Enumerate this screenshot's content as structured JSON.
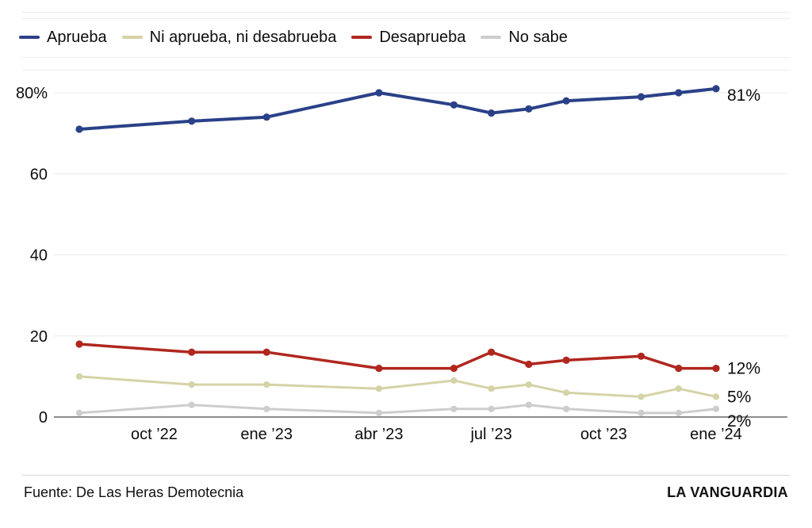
{
  "legend": {
    "items": [
      {
        "label": "Aprueba",
        "color": "#2a4188"
      },
      {
        "label": "Ni aprueba, ni desabrueba",
        "color": "#d5d3a7"
      },
      {
        "label": "Desaprueba",
        "color": "#b0271f"
      },
      {
        "label": "No sabe",
        "color": "#cdcdcd"
      }
    ]
  },
  "chart_data": {
    "type": "line",
    "x_tick_labels": [
      {
        "label": "oct ’22",
        "month_offset": 2
      },
      {
        "label": "ene ’23",
        "month_offset": 5
      },
      {
        "label": "abr ’23",
        "month_offset": 8
      },
      {
        "label": "jul ’23",
        "month_offset": 11
      },
      {
        "label": "oct ’23",
        "month_offset": 14
      },
      {
        "label": "ene ’24",
        "month_offset": 17
      }
    ],
    "point_month_offsets": [
      0,
      3,
      5,
      8,
      10,
      11,
      12,
      13,
      15,
      16,
      17
    ],
    "series": [
      {
        "name": "Aprueba",
        "color": "#2a4188",
        "values": [
          71,
          73,
          74,
          80,
          77,
          75,
          76,
          78,
          79,
          80,
          81
        ],
        "end_label": "81%"
      },
      {
        "name": "Ni aprueba, ni desabrueba",
        "color": "#d5d3a7",
        "values": [
          10,
          8,
          8,
          7,
          9,
          7,
          8,
          6,
          5,
          7,
          5
        ],
        "end_label": "5%"
      },
      {
        "name": "Desaprueba",
        "color": "#b0271f",
        "values": [
          18,
          16,
          16,
          12,
          12,
          16,
          13,
          14,
          15,
          12,
          12
        ],
        "end_label": "12%"
      },
      {
        "name": "No sabe",
        "color": "#cdcdcd",
        "values": [
          1,
          3,
          2,
          1,
          2,
          2,
          3,
          2,
          1,
          1,
          2
        ],
        "end_label": "2%"
      }
    ],
    "y_ticks": [
      {
        "value": 0,
        "label": "0"
      },
      {
        "value": 20,
        "label": "20"
      },
      {
        "value": 40,
        "label": "40"
      },
      {
        "value": 60,
        "label": "60"
      },
      {
        "value": 80,
        "label": "80%"
      }
    ],
    "ylim": [
      0,
      88
    ],
    "grid": "horizontal",
    "legend_position": "top"
  },
  "footer": {
    "source": "Fuente: De Las Heras Demotecnia",
    "brand": "LA VANGUARDIA"
  }
}
